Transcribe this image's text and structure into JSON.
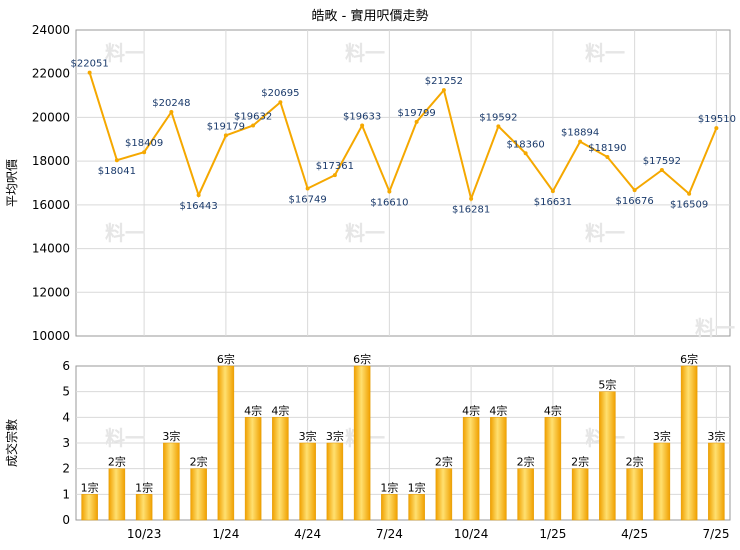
{
  "title": "皓畋 - 實用呎價走勢",
  "chart_data": [
    {
      "type": "line",
      "ylabel": "平均呎價",
      "ylim": [
        10000,
        24000
      ],
      "yticks": [
        10000,
        12000,
        14000,
        16000,
        18000,
        20000,
        22000,
        24000
      ],
      "color": "#f5a800",
      "values": [
        22051,
        18041,
        18409,
        20248,
        16443,
        19179,
        19632,
        20695,
        16749,
        17361,
        19633,
        16610,
        19799,
        21252,
        16281,
        19592,
        18360,
        16631,
        18894,
        18190,
        16676,
        17592,
        16509,
        19510
      ],
      "labels": [
        "$22051",
        "$18041",
        "$18409",
        "$20248",
        "$16443",
        "$19179",
        "$19632",
        "$20695",
        "$16749",
        "$17361",
        "$19633",
        "$16610",
        "$19799",
        "$21252",
        "$16281",
        "$19592",
        "$18360",
        "$16631",
        "$18894",
        "$18190",
        "$16676",
        "$17592",
        "$16509",
        "$19510"
      ]
    },
    {
      "type": "bar",
      "ylabel": "成交宗數",
      "ylim": [
        0,
        6
      ],
      "yticks": [
        0,
        1,
        2,
        3,
        4,
        5,
        6
      ],
      "color": "#f5b400",
      "values": [
        1,
        2,
        1,
        3,
        2,
        6,
        4,
        4,
        3,
        3,
        6,
        1,
        1,
        2,
        4,
        4,
        2,
        4,
        2,
        5,
        2,
        3,
        6,
        3
      ],
      "labels": [
        "1宗",
        "2宗",
        "1宗",
        "3宗",
        "2宗",
        "6宗",
        "4宗",
        "4宗",
        "3宗",
        "3宗",
        "6宗",
        "1宗",
        "1宗",
        "2宗",
        "4宗",
        "4宗",
        "2宗",
        "4宗",
        "2宗",
        "5宗",
        "2宗",
        "3宗",
        "6宗",
        "3宗"
      ],
      "x_ticks": [
        "10/23",
        "1/24",
        "4/24",
        "7/24",
        "10/24",
        "1/25",
        "4/25",
        "7/25"
      ]
    }
  ]
}
